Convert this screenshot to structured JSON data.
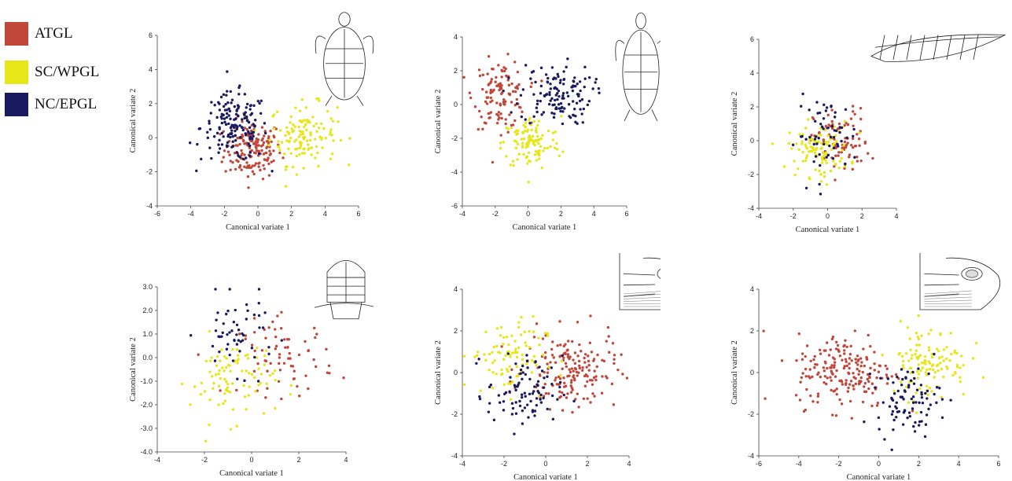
{
  "legend": {
    "items": [
      {
        "label": "ATGL",
        "color": "#c0473a"
      },
      {
        "label": "SC/WPGL",
        "color": "#e6e619"
      },
      {
        "label": "NC/EPGL",
        "color": "#1a1a5e"
      }
    ]
  },
  "chart_data": [
    {
      "type": "scatter",
      "title": "",
      "xlabel": "Canonical variate 1",
      "ylabel": "Canonical variate 2",
      "xlim": [
        -6,
        6
      ],
      "ylim": [
        -4,
        6
      ],
      "xticks": [
        "-6",
        "-4",
        "-2",
        "0",
        "2",
        "4",
        "6"
      ],
      "yticks": [
        "-4",
        "-2",
        "0",
        "2",
        "4",
        "6"
      ],
      "illustration": "turtle-carapace-icon",
      "series": [
        {
          "name": "ATGL",
          "color": "#c0473a",
          "n": 160,
          "cx": -0.3,
          "cy": -0.7,
          "sx": 0.85,
          "sy": 0.85
        },
        {
          "name": "SC/WPGL",
          "color": "#e6e619",
          "n": 130,
          "cx": 2.7,
          "cy": 0.2,
          "sx": 1.0,
          "sy": 0.9
        },
        {
          "name": "NC/EPGL",
          "color": "#1a1a5e",
          "n": 160,
          "cx": -1.4,
          "cy": 0.6,
          "sx": 1.0,
          "sy": 1.0
        }
      ]
    },
    {
      "type": "scatter",
      "title": "",
      "xlabel": "Canonical variate 1",
      "ylabel": "Canonical variate 2",
      "xlim": [
        -4,
        6
      ],
      "ylim": [
        -6,
        4
      ],
      "xticks": [
        "-4",
        "-2",
        "0",
        "2",
        "4",
        "6"
      ],
      "yticks": [
        "-6",
        "-4",
        "-2",
        "0",
        "2",
        "4"
      ],
      "illustration": "turtle-plastron-icon",
      "series": [
        {
          "name": "ATGL",
          "color": "#c0473a",
          "n": 120,
          "cx": -1.7,
          "cy": 0.6,
          "sx": 0.8,
          "sy": 1.0
        },
        {
          "name": "SC/WPGL",
          "color": "#e6e619",
          "n": 110,
          "cx": 0.2,
          "cy": -2.3,
          "sx": 0.9,
          "sy": 0.8
        },
        {
          "name": "NC/EPGL",
          "color": "#1a1a5e",
          "n": 130,
          "cx": 1.7,
          "cy": 0.6,
          "sx": 1.1,
          "sy": 0.9
        }
      ]
    },
    {
      "type": "scatter",
      "title": "",
      "xlabel": "Canonical variate 1",
      "ylabel": "Canonical variate 2",
      "xlim": [
        -4,
        4
      ],
      "ylim": [
        -4,
        6
      ],
      "xticks": [
        "-4",
        "-2",
        "0",
        "2",
        "4"
      ],
      "yticks": [
        "-4",
        "-2",
        "0",
        "2",
        "4",
        "6"
      ],
      "illustration": "turtle-flipper-icon",
      "series": [
        {
          "name": "ATGL",
          "color": "#c0473a",
          "n": 80,
          "cx": 0.8,
          "cy": -0.1,
          "sx": 0.8,
          "sy": 1.0
        },
        {
          "name": "SC/WPGL",
          "color": "#e6e619",
          "n": 110,
          "cx": -0.5,
          "cy": -0.5,
          "sx": 0.9,
          "sy": 0.8
        },
        {
          "name": "NC/EPGL",
          "color": "#1a1a5e",
          "n": 60,
          "cx": 0.0,
          "cy": 0.3,
          "sx": 0.9,
          "sy": 1.1
        }
      ]
    },
    {
      "type": "scatter",
      "title": "",
      "xlabel": "Canonical variate 1",
      "ylabel": "Canonical variate 2",
      "xlim": [
        -4,
        4
      ],
      "ylim": [
        -4,
        3
      ],
      "xticks": [
        "-4",
        "-2",
        "0",
        "2",
        "4"
      ],
      "yticks": [
        "-4.0",
        "-3.0",
        "-2.0",
        "-1.0",
        "0.0",
        "1.0",
        "2.0",
        "3.0"
      ],
      "illustration": "turtle-head-top-icon",
      "series": [
        {
          "name": "ATGL",
          "color": "#c0473a",
          "n": 70,
          "cx": 1.5,
          "cy": 0.0,
          "sx": 1.0,
          "sy": 0.8
        },
        {
          "name": "SC/WPGL",
          "color": "#e6e619",
          "n": 90,
          "cx": -0.8,
          "cy": -0.9,
          "sx": 0.9,
          "sy": 0.9
        },
        {
          "name": "NC/EPGL",
          "color": "#1a1a5e",
          "n": 55,
          "cx": -0.6,
          "cy": 1.0,
          "sx": 0.8,
          "sy": 0.8
        }
      ]
    },
    {
      "type": "scatter",
      "title": "",
      "xlabel": "Canonical variate 1",
      "ylabel": "Canonical variate 2",
      "xlim": [
        -4,
        4
      ],
      "ylim": [
        -4,
        4
      ],
      "xticks": [
        "-4",
        "-2",
        "0",
        "2",
        "4"
      ],
      "yticks": [
        "-4",
        "-2",
        "0",
        "2",
        "4"
      ],
      "illustration": "turtle-head-side-icon",
      "series": [
        {
          "name": "ATGL",
          "color": "#c0473a",
          "n": 170,
          "cx": 1.2,
          "cy": 0.1,
          "sx": 1.1,
          "sy": 0.9
        },
        {
          "name": "SC/WPGL",
          "color": "#e6e619",
          "n": 90,
          "cx": -1.8,
          "cy": 0.8,
          "sx": 0.9,
          "sy": 0.9
        },
        {
          "name": "NC/EPGL",
          "color": "#1a1a5e",
          "n": 90,
          "cx": -1.0,
          "cy": -1.0,
          "sx": 0.9,
          "sy": 0.9
        }
      ]
    },
    {
      "type": "scatter",
      "title": "",
      "xlabel": "Canonical variate 1",
      "ylabel": "Canonical variate 2",
      "xlim": [
        -6,
        6
      ],
      "ylim": [
        -4,
        4
      ],
      "xticks": [
        "-6",
        "-4",
        "-2",
        "0",
        "2",
        "4",
        "6"
      ],
      "yticks": [
        "-4",
        "-2",
        "0",
        "2",
        "4"
      ],
      "illustration": "turtle-head-side-icon",
      "series": [
        {
          "name": "ATGL",
          "color": "#c0473a",
          "n": 190,
          "cx": -1.7,
          "cy": 0.1,
          "sx": 1.2,
          "sy": 0.9
        },
        {
          "name": "SC/WPGL",
          "color": "#e6e619",
          "n": 120,
          "cx": 2.5,
          "cy": 0.5,
          "sx": 1.0,
          "sy": 0.9
        },
        {
          "name": "NC/EPGL",
          "color": "#1a1a5e",
          "n": 90,
          "cx": 1.5,
          "cy": -1.3,
          "sx": 0.8,
          "sy": 0.8
        }
      ]
    }
  ]
}
